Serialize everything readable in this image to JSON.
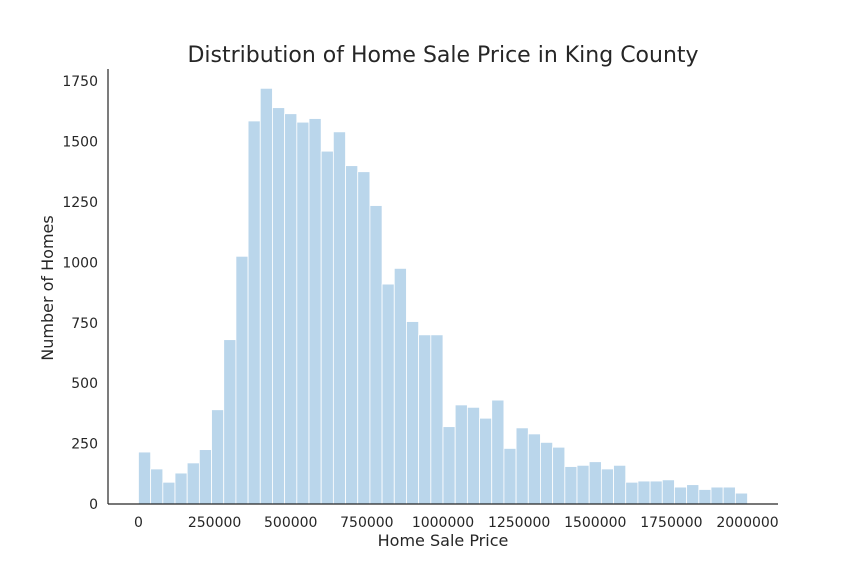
{
  "chart_data": {
    "type": "bar",
    "title": "Distribution of Home Sale Price in King County",
    "xlabel": "Home Sale Price",
    "ylabel": "Number of Homes",
    "xlim": [
      -100000,
      2100000
    ],
    "ylim": [
      0,
      1800
    ],
    "grid": false,
    "bar_color": "#bad6eb",
    "bin_start": 0,
    "bin_width": 40000,
    "values": [
      215,
      145,
      90,
      128,
      170,
      225,
      390,
      680,
      1025,
      1585,
      1720,
      1640,
      1615,
      1580,
      1595,
      1460,
      1540,
      1400,
      1375,
      1235,
      910,
      975,
      755,
      700,
      700,
      320,
      410,
      400,
      355,
      430,
      230,
      315,
      290,
      255,
      235,
      155,
      160,
      175,
      145,
      160,
      90,
      95,
      95,
      100,
      70,
      80,
      60,
      70,
      70,
      45
    ],
    "x_ticks": [
      "0",
      "250000",
      "500000",
      "750000",
      "1000000",
      "1250000",
      "1500000",
      "1750000",
      "2000000"
    ],
    "y_ticks": [
      "0",
      "250",
      "500",
      "750",
      "1000",
      "1250",
      "1500",
      "1750"
    ]
  }
}
